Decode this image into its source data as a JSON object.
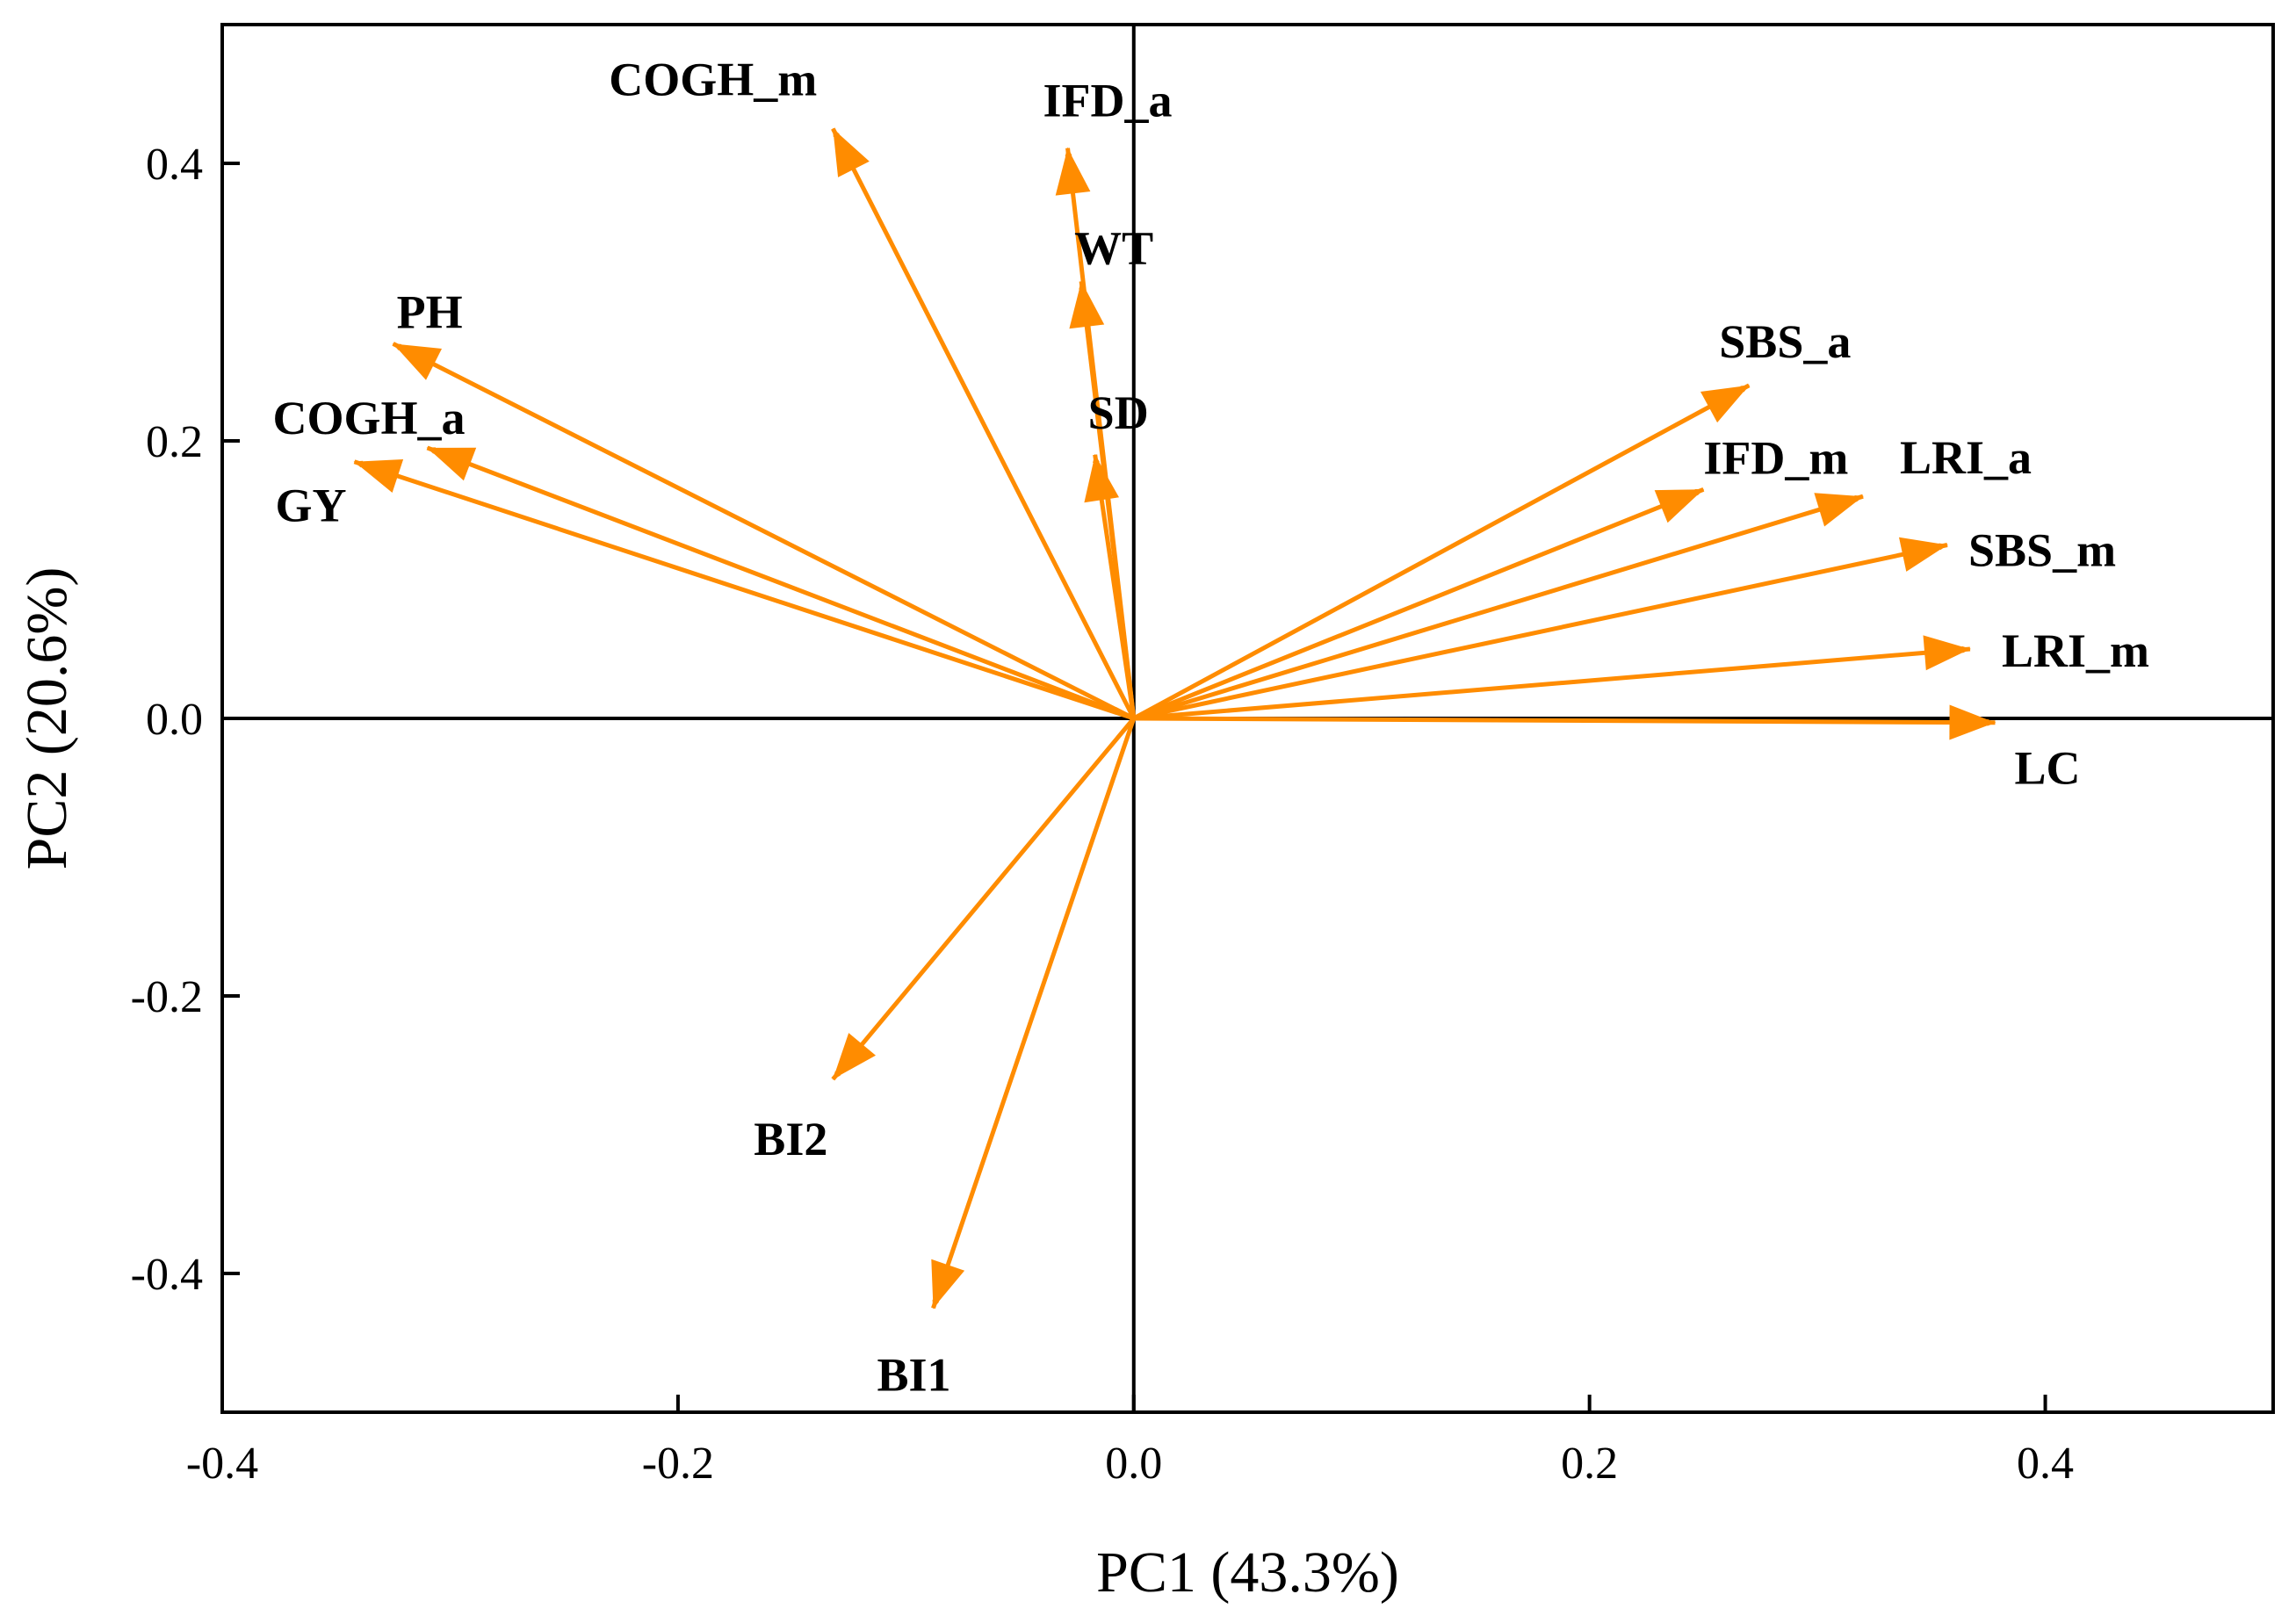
{
  "chart_data": {
    "type": "biplot",
    "xlabel": "PC1 (43.3%)",
    "ylabel": "PC2 (20.6%)",
    "xlim": [
      -0.4,
      0.5
    ],
    "ylim": [
      -0.5,
      0.5
    ],
    "x_ticks": [
      {
        "value": -0.4,
        "label": "-0.4"
      },
      {
        "value": -0.2,
        "label": "-0.2"
      },
      {
        "value": 0.0,
        "label": "0.0"
      },
      {
        "value": 0.2,
        "label": "0.2"
      },
      {
        "value": 0.4,
        "label": "0.4"
      }
    ],
    "y_ticks": [
      {
        "value": 0.4,
        "label": "0.4"
      },
      {
        "value": 0.2,
        "label": "0.2"
      },
      {
        "value": 0.0,
        "label": "0.0"
      },
      {
        "value": -0.2,
        "label": "-0.2"
      },
      {
        "value": -0.4,
        "label": "-0.4"
      }
    ],
    "arrow_color": "#FF8C00",
    "axis_color": "#000000",
    "loadings": [
      {
        "name": "COGH_m",
        "pc1": -0.132,
        "pc2": 0.425
      },
      {
        "name": "IFD_a",
        "pc1": -0.029,
        "pc2": 0.411
      },
      {
        "name": "WT",
        "pc1": -0.023,
        "pc2": 0.315
      },
      {
        "name": "PH",
        "pc1": -0.325,
        "pc2": 0.27
      },
      {
        "name": "COGH_a",
        "pc1": -0.31,
        "pc2": 0.195
      },
      {
        "name": "GY",
        "pc1": -0.342,
        "pc2": 0.185
      },
      {
        "name": "SD",
        "pc1": -0.017,
        "pc2": 0.19
      },
      {
        "name": "SBS_a",
        "pc1": 0.27,
        "pc2": 0.24
      },
      {
        "name": "IFD_m",
        "pc1": 0.25,
        "pc2": 0.165
      },
      {
        "name": "LRI_a",
        "pc1": 0.32,
        "pc2": 0.16
      },
      {
        "name": "SBS_m",
        "pc1": 0.357,
        "pc2": 0.125
      },
      {
        "name": "LRI_m",
        "pc1": 0.367,
        "pc2": 0.05
      },
      {
        "name": "LC",
        "pc1": 0.378,
        "pc2": -0.003
      },
      {
        "name": "BI2",
        "pc1": -0.132,
        "pc2": -0.26
      },
      {
        "name": "BI1",
        "pc1": -0.088,
        "pc2": -0.425
      }
    ]
  }
}
